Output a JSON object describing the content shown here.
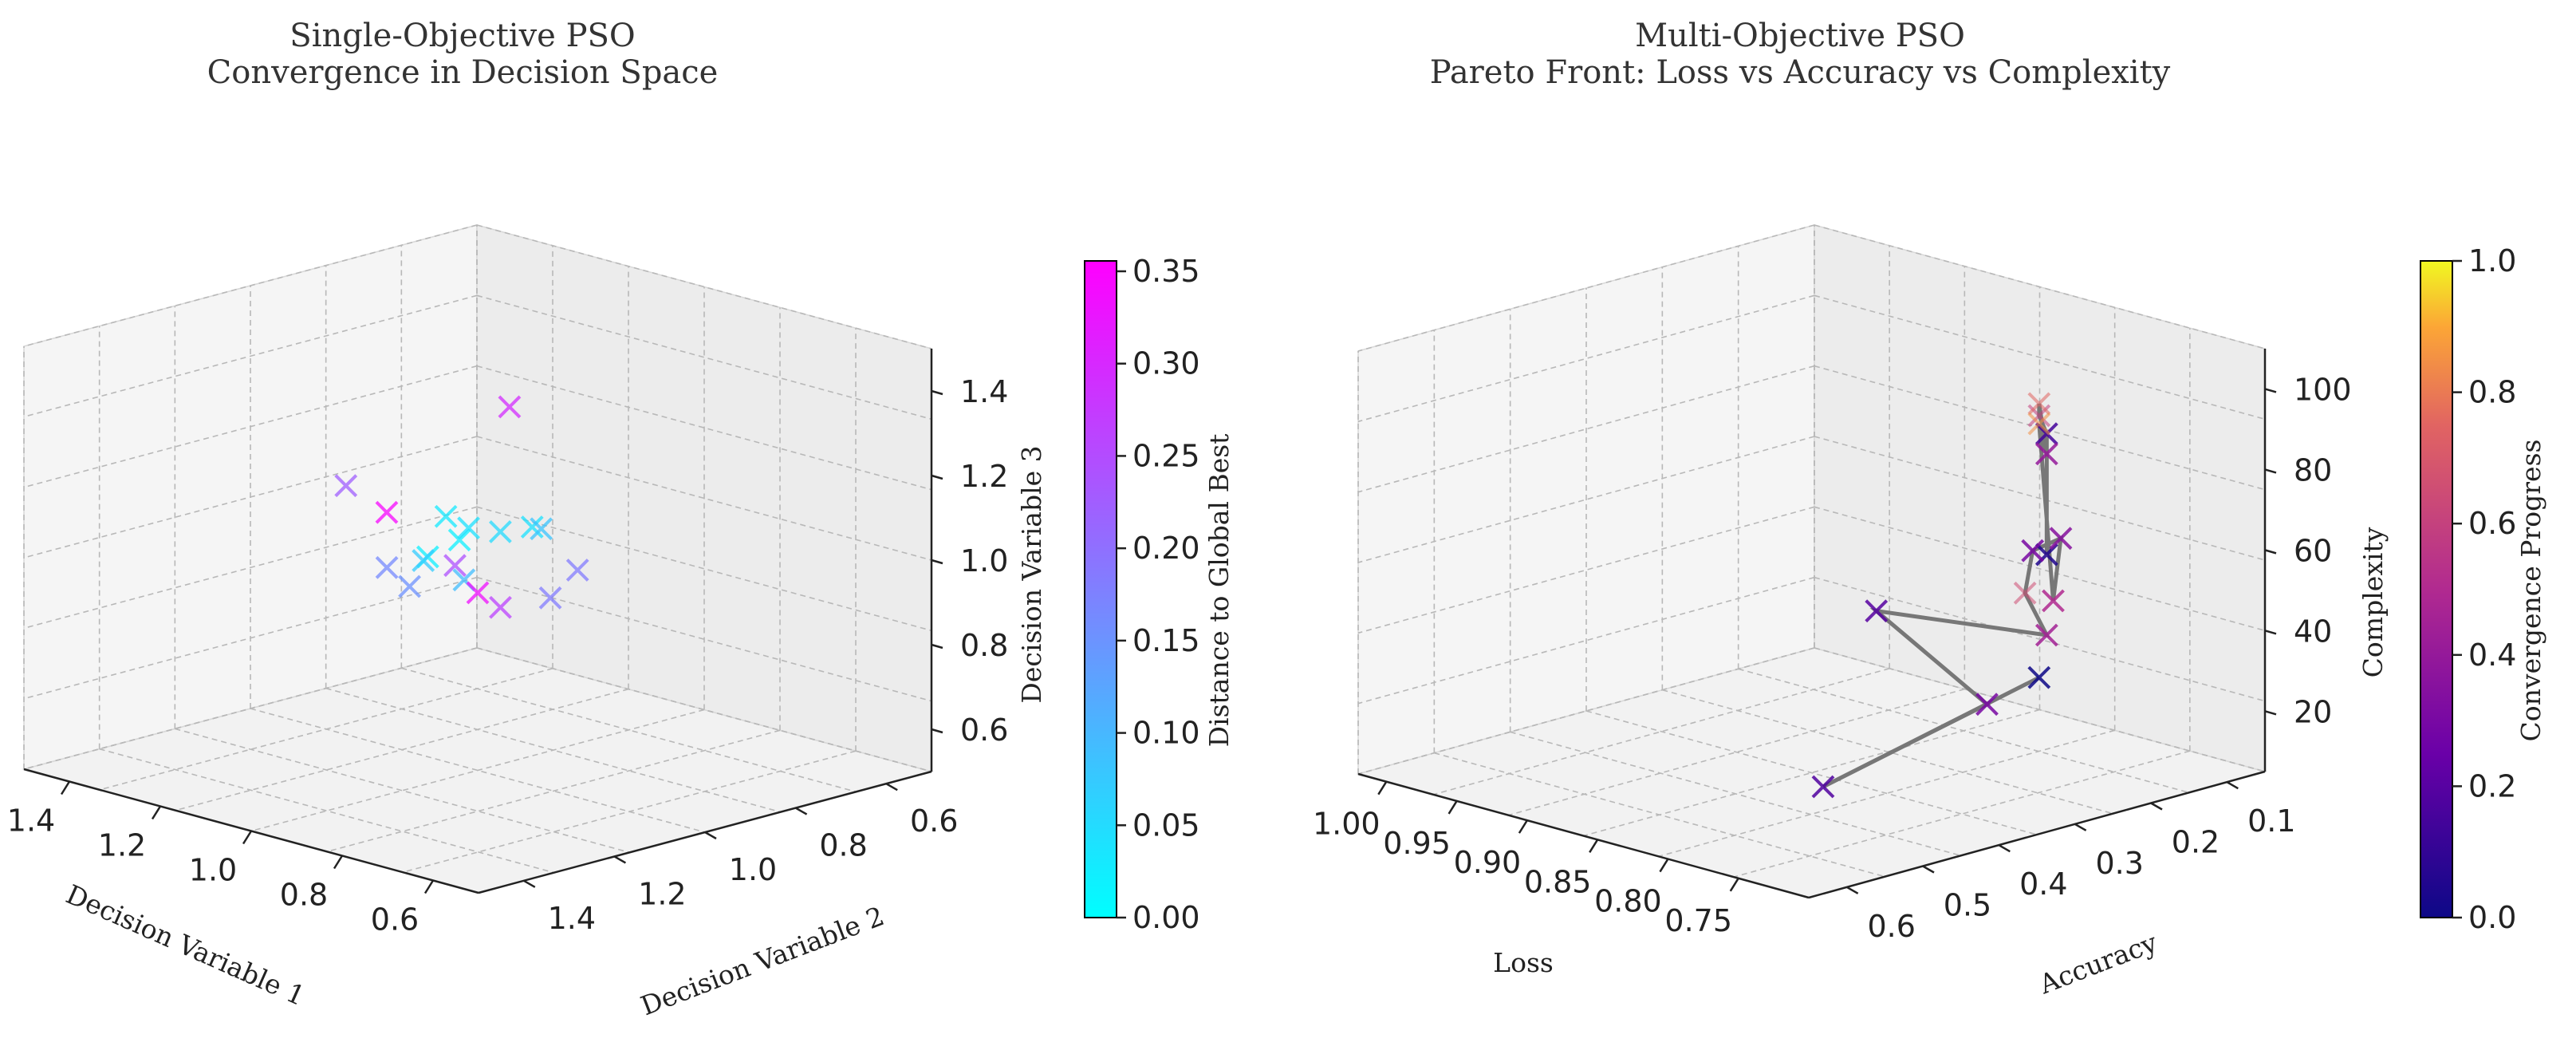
{
  "left_chart": {
    "title_line1": "Single-Objective PSO",
    "title_line2": "Convergence in Decision Space",
    "xlabel": "Decision Variable 1",
    "ylabel": "Decision Variable 2",
    "zlabel": "Decision Variable 3",
    "x_ticks": [
      "1.4",
      "1.2",
      "1.0",
      "0.8",
      "0.6"
    ],
    "y_ticks": [
      "1.4",
      "1.2",
      "1.0",
      "0.8",
      "0.6"
    ],
    "z_ticks": [
      "1.4",
      "1.2",
      "1.0",
      "0.8",
      "0.6"
    ],
    "colorbar_label": "Distance to Global Best",
    "colorbar_ticks": [
      "0.35",
      "0.30",
      "0.25",
      "0.20",
      "0.15",
      "0.10",
      "0.05",
      "0.00"
    ]
  },
  "right_chart": {
    "title_line1": "Multi-Objective PSO",
    "title_line2": "Pareto Front: Loss vs Accuracy vs Complexity",
    "xlabel": "Loss",
    "ylabel": "Accuracy",
    "zlabel": "Complexity",
    "x_ticks": [
      "1.00",
      "0.95",
      "0.90",
      "0.85",
      "0.80",
      "0.75"
    ],
    "y_ticks": [
      "0.6",
      "0.5",
      "0.4",
      "0.3",
      "0.2",
      "0.1"
    ],
    "z_ticks": [
      "100",
      "80",
      "60",
      "40",
      "20"
    ],
    "colorbar_label": "Convergence Progress",
    "colorbar_ticks": [
      "1.0",
      "0.8",
      "0.6",
      "0.4",
      "0.2",
      "0.0"
    ]
  },
  "chart_data": [
    {
      "type": "scatter",
      "subtype": "3d-scatter",
      "title": "Single-Objective PSO\nConvergence in Decision Space",
      "xlabel": "Decision Variable 1",
      "ylabel": "Decision Variable 2",
      "zlabel": "Decision Variable 3",
      "xlim": [
        0.5,
        1.5
      ],
      "ylim": [
        0.5,
        1.5
      ],
      "zlim": [
        0.5,
        1.5
      ],
      "marker": "x",
      "colormap": "cool",
      "color_label": "Distance to Global Best",
      "color_range": [
        0.0,
        0.35
      ],
      "grid": true,
      "points": [
        {
          "x": 0.93,
          "y": 1.0,
          "z": 1.38,
          "c": 0.29
        },
        {
          "x": 1.27,
          "y": 1.02,
          "z": 1.1,
          "c": 0.22
        },
        {
          "x": 1.22,
          "y": 0.98,
          "z": 1.04,
          "c": 0.34
        },
        {
          "x": 1.07,
          "y": 1.0,
          "z": 1.08,
          "c": 0.03
        },
        {
          "x": 1.08,
          "y": 0.96,
          "z": 1.01,
          "c": 0.02
        },
        {
          "x": 1.05,
          "y": 0.97,
          "z": 1.05,
          "c": 0.04
        },
        {
          "x": 1.08,
          "y": 1.03,
          "z": 0.99,
          "c": 0.02
        },
        {
          "x": 1.07,
          "y": 1.05,
          "z": 0.99,
          "c": 0.07
        },
        {
          "x": 1.0,
          "y": 0.95,
          "z": 1.05,
          "c": 0.05
        },
        {
          "x": 0.95,
          "y": 0.93,
          "z": 1.07,
          "c": 0.04
        },
        {
          "x": 0.95,
          "y": 0.91,
          "z": 1.06,
          "c": 0.08
        },
        {
          "x": 0.88,
          "y": 0.9,
          "z": 0.98,
          "c": 0.18
        },
        {
          "x": 0.9,
          "y": 0.94,
          "z": 0.92,
          "c": 0.18
        },
        {
          "x": 1.15,
          "y": 1.05,
          "z": 0.95,
          "c": 0.16
        },
        {
          "x": 1.1,
          "y": 1.05,
          "z": 0.92,
          "c": 0.15
        },
        {
          "x": 1.05,
          "y": 0.98,
          "z": 0.93,
          "c": 0.09
        },
        {
          "x": 1.05,
          "y": 1.0,
          "z": 0.97,
          "c": 0.24
        },
        {
          "x": 1.0,
          "y": 1.0,
          "z": 0.92,
          "c": 0.33
        },
        {
          "x": 0.95,
          "y": 1.0,
          "z": 0.9,
          "c": 0.26
        }
      ]
    },
    {
      "type": "scatter",
      "subtype": "3d-scatter-with-line",
      "title": "Multi-Objective PSO\nPareto Front: Loss vs Accuracy vs Complexity",
      "xlabel": "Loss",
      "ylabel": "Accuracy",
      "zlabel": "Complexity",
      "xlim": [
        0.7,
        1.02
      ],
      "ylim": [
        0.05,
        0.65
      ],
      "zlim": [
        5,
        110
      ],
      "marker": "x",
      "colormap": "plasma",
      "color_label": "Convergence Progress",
      "color_range": [
        0.0,
        1.0
      ],
      "line_color": "#777777",
      "grid": true,
      "points": [
        {
          "x": 0.72,
          "y": 0.3,
          "z": 70,
          "c": 0.05
        },
        {
          "x": 0.72,
          "y": 0.3,
          "z": 100,
          "c": 0.15
        },
        {
          "x": 0.72,
          "y": 0.31,
          "z": 105,
          "c": 0.6
        },
        {
          "x": 0.72,
          "y": 0.31,
          "z": 108,
          "c": 0.75
        },
        {
          "x": 0.72,
          "y": 0.3,
          "z": 95,
          "c": 0.4
        },
        {
          "x": 0.72,
          "y": 0.31,
          "z": 103,
          "c": 0.85
        },
        {
          "x": 0.71,
          "y": 0.31,
          "z": 60,
          "c": 0.5
        },
        {
          "x": 0.71,
          "y": 0.3,
          "z": 75,
          "c": 0.35
        },
        {
          "x": 0.73,
          "y": 0.3,
          "z": 70,
          "c": 0.3
        },
        {
          "x": 0.73,
          "y": 0.31,
          "z": 60,
          "c": 0.65
        },
        {
          "x": 0.72,
          "y": 0.3,
          "z": 50,
          "c": 0.45
        },
        {
          "x": 0.76,
          "y": 0.45,
          "z": 60,
          "c": 0.2
        },
        {
          "x": 0.73,
          "y": 0.36,
          "z": 35,
          "c": 0.3
        },
        {
          "x": 0.76,
          "y": 0.52,
          "z": 20,
          "c": 0.18
        },
        {
          "x": 0.72,
          "y": 0.31,
          "z": 40,
          "c": 0.0
        }
      ]
    }
  ]
}
